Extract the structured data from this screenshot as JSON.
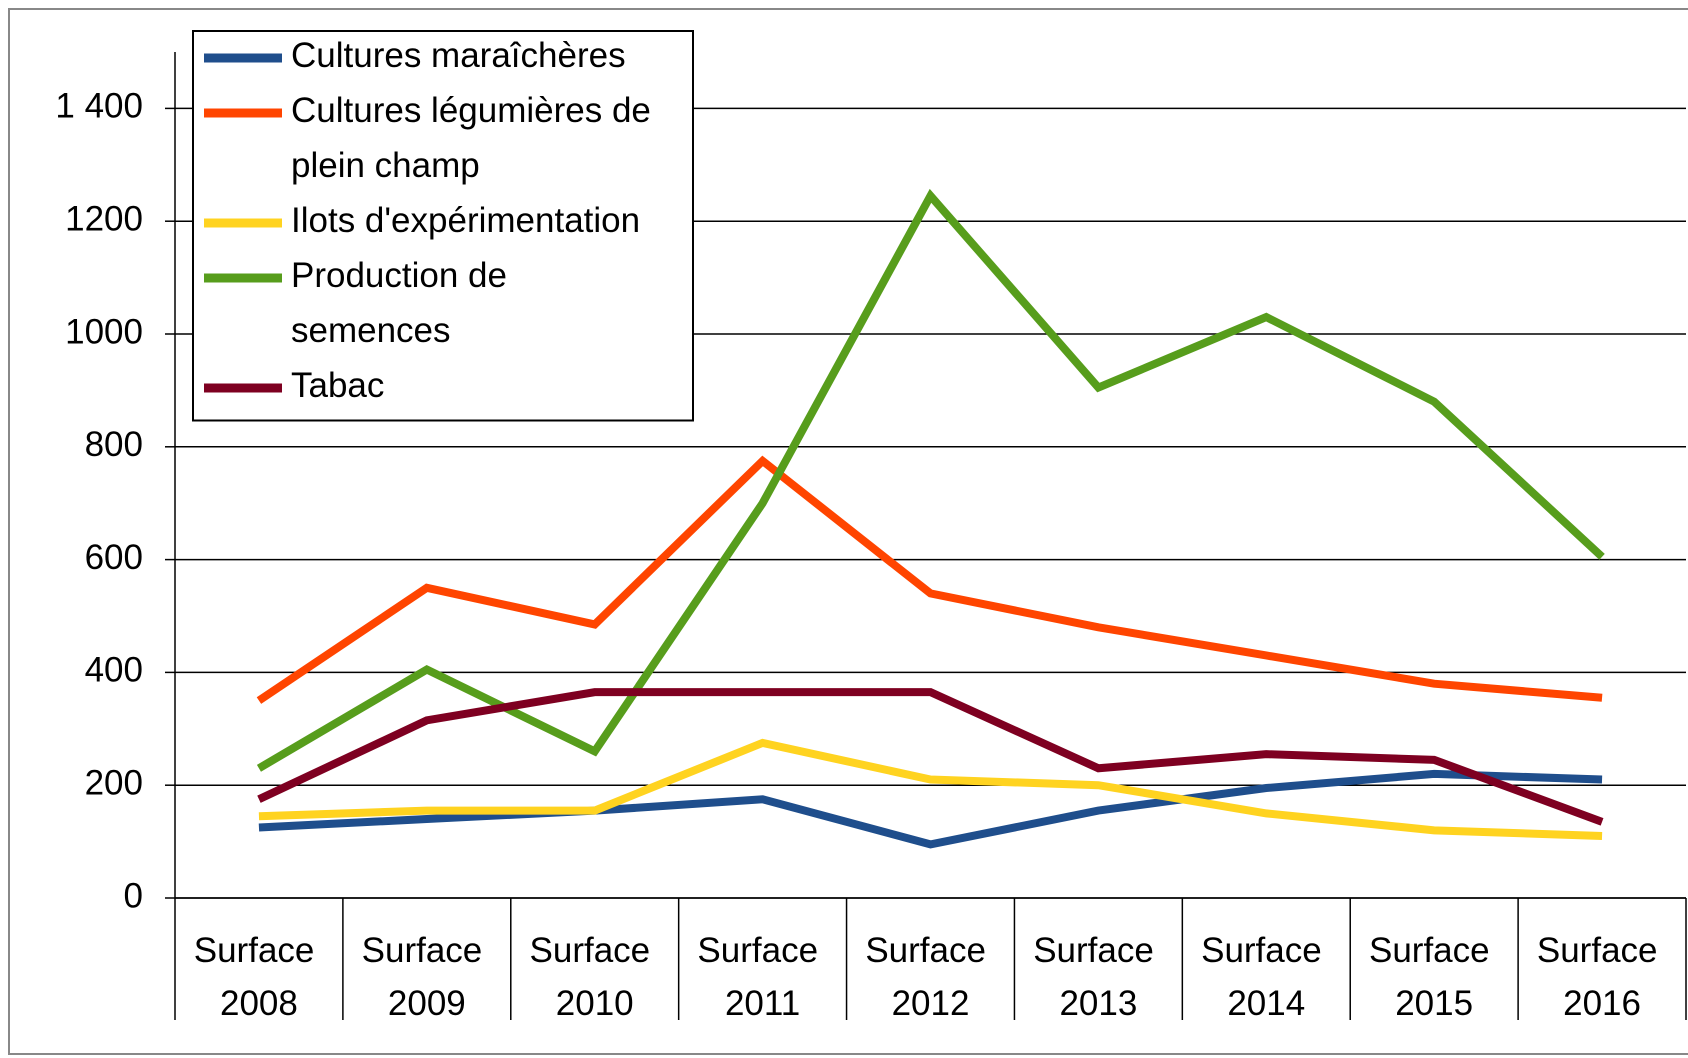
{
  "chart_data": {
    "type": "line",
    "categories": [
      "Surface 2008",
      "Surface 2009",
      "Surface 2010",
      "Surface 2011",
      "Surface 2012",
      "Surface 2013",
      "Surface 2014",
      "Surface 2015",
      "Surface 2016"
    ],
    "series": [
      {
        "name": "Cultures maraîchères",
        "color": "#1f4e8c",
        "values": [
          125,
          140,
          155,
          175,
          95,
          155,
          195,
          220,
          210
        ]
      },
      {
        "name": "Cultures légumières de plein champ",
        "color": "#ff4500",
        "values": [
          350,
          550,
          485,
          775,
          540,
          480,
          430,
          380,
          355
        ]
      },
      {
        "name": "Ilots d'expérimentation",
        "color": "#ffd320",
        "values": [
          145,
          155,
          155,
          275,
          210,
          200,
          150,
          120,
          110
        ]
      },
      {
        "name": "Production de semences",
        "color": "#579d1c",
        "values": [
          230,
          405,
          260,
          700,
          1245,
          905,
          1030,
          880,
          605
        ]
      },
      {
        "name": "Tabac",
        "color": "#7e0021",
        "values": [
          175,
          315,
          365,
          365,
          365,
          230,
          255,
          245,
          135
        ]
      }
    ],
    "ylim": [
      0,
      1500
    ],
    "yticks": [
      0,
      200,
      400,
      600,
      800,
      1000,
      1200,
      {
        "value": 1400,
        "label": "1 400"
      }
    ],
    "grid": true,
    "legend": "top-left"
  }
}
